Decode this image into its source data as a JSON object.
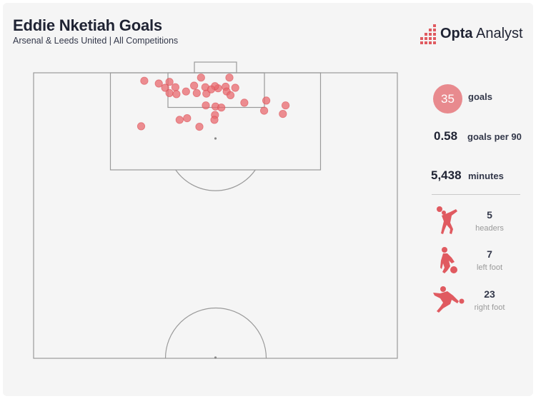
{
  "header": {
    "title": "Eddie Nketiah Goals",
    "subtitle": "Arsenal & Leeds United | All Competitions",
    "brand_bold": "Opta",
    "brand_light": "Analyst"
  },
  "stats": {
    "goals_value": "35",
    "goals_label": "goals",
    "per90_value": "0.58",
    "per90_label": "goals per 90",
    "minutes_value": "5,438",
    "minutes_label": "minutes",
    "breakdown": [
      {
        "value": "5",
        "label": "headers",
        "icon": "header-player-icon"
      },
      {
        "value": "7",
        "label": "left foot",
        "icon": "left-foot-player-icon"
      },
      {
        "value": "23",
        "label": "right foot",
        "icon": "right-foot-player-icon"
      }
    ]
  },
  "colors": {
    "accent": "#e05a60",
    "dot_fill": "#e8686e",
    "circle": "#e88a8e",
    "pitch_line": "#9a9a9a",
    "text_dark": "#1f2333"
  },
  "chart_data": {
    "type": "scatter",
    "title": "Eddie Nketiah Goals",
    "subtitle": "Arsenal & Leeds United | All Competitions",
    "xlabel": "",
    "ylabel": "",
    "x_axis": "metres from left touchline (pitch width 68)",
    "y_axis": "metres from goal line",
    "xlim": [
      0,
      68
    ],
    "ylim": [
      0,
      52.5
    ],
    "legend": "none",
    "grid": false,
    "points": [
      {
        "x": 23.4,
        "y": 2.0
      },
      {
        "x": 25.4,
        "y": 1.7
      },
      {
        "x": 31.3,
        "y": 0.9
      },
      {
        "x": 36.6,
        "y": 0.9
      },
      {
        "x": 20.7,
        "y": 1.5
      },
      {
        "x": 24.6,
        "y": 2.8
      },
      {
        "x": 26.5,
        "y": 2.7
      },
      {
        "x": 30.0,
        "y": 2.4
      },
      {
        "x": 32.1,
        "y": 2.7
      },
      {
        "x": 34.5,
        "y": 2.9
      },
      {
        "x": 35.9,
        "y": 2.6
      },
      {
        "x": 37.7,
        "y": 2.8
      },
      {
        "x": 36.1,
        "y": 3.5
      },
      {
        "x": 25.4,
        "y": 3.8
      },
      {
        "x": 26.7,
        "y": 4.0
      },
      {
        "x": 30.5,
        "y": 3.8
      },
      {
        "x": 32.3,
        "y": 3.9
      },
      {
        "x": 36.8,
        "y": 4.2
      },
      {
        "x": 28.5,
        "y": 3.5
      },
      {
        "x": 33.9,
        "y": 2.5
      },
      {
        "x": 33.2,
        "y": 3.1
      },
      {
        "x": 43.5,
        "y": 5.2
      },
      {
        "x": 39.4,
        "y": 5.6
      },
      {
        "x": 32.2,
        "y": 6.1
      },
      {
        "x": 34.0,
        "y": 6.3
      },
      {
        "x": 47.1,
        "y": 6.1
      },
      {
        "x": 43.1,
        "y": 7.1
      },
      {
        "x": 35.1,
        "y": 6.5
      },
      {
        "x": 46.6,
        "y": 7.7
      },
      {
        "x": 33.9,
        "y": 7.9
      },
      {
        "x": 28.7,
        "y": 8.5
      },
      {
        "x": 27.3,
        "y": 8.8
      },
      {
        "x": 33.8,
        "y": 8.8
      },
      {
        "x": 20.1,
        "y": 10.0
      },
      {
        "x": 31.0,
        "y": 10.1
      }
    ]
  }
}
